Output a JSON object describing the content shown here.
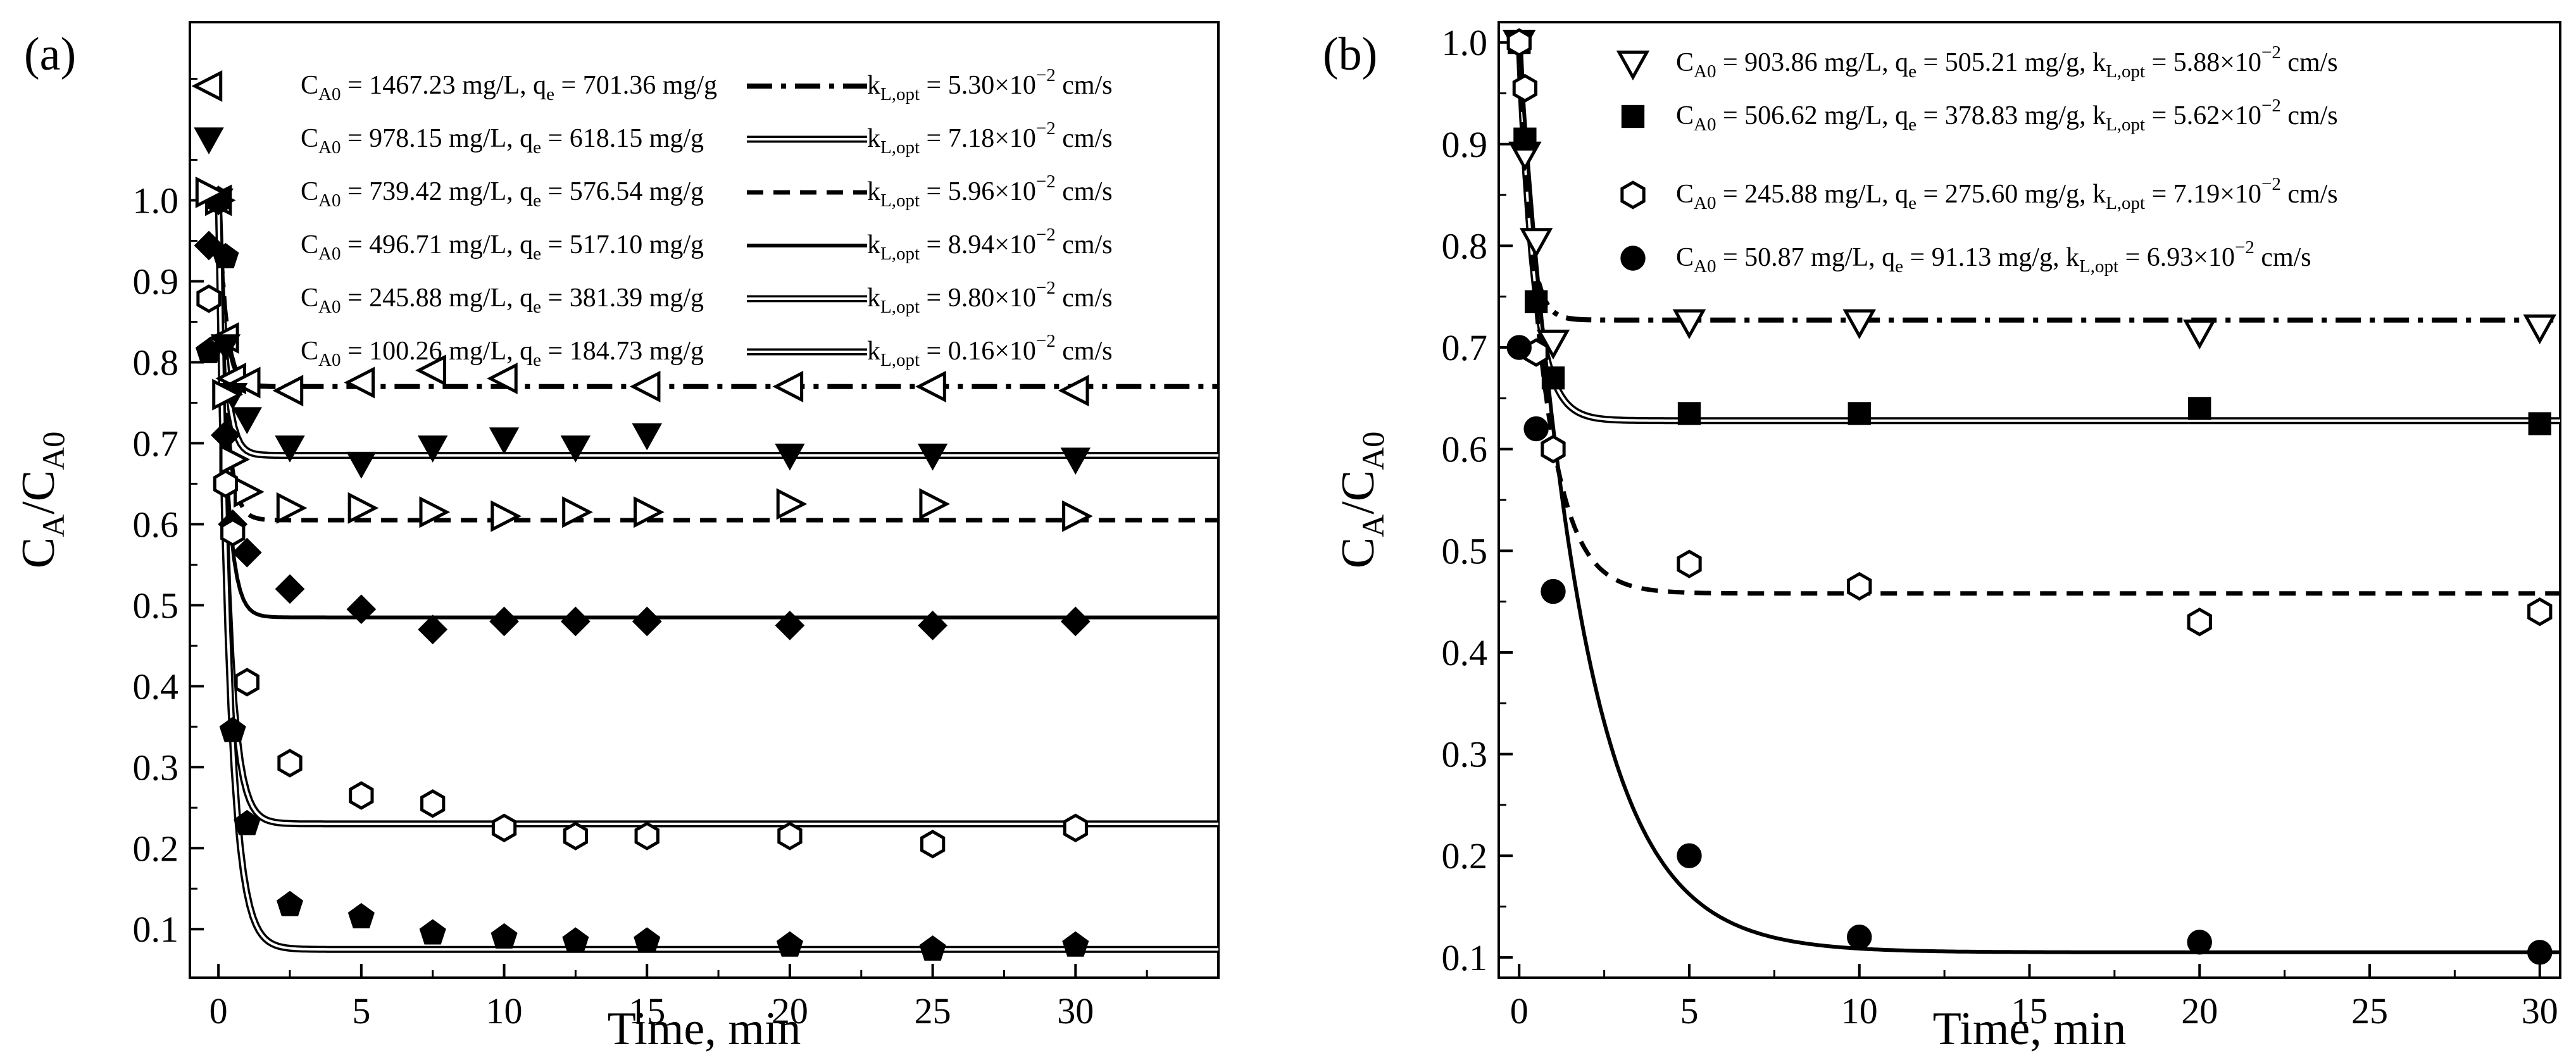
{
  "chart_data": [
    {
      "panel_label": "(a)",
      "type": "scatter",
      "xlabel": "Time, min",
      "ylabel_main": "C",
      "ylabel_sub": "A",
      "ylabel_sep": "/C",
      "ylabel_sub2": "A0",
      "xlim": [
        -1,
        35
      ],
      "ylim": [
        0.04,
        1.22
      ],
      "xticks": [
        0,
        5,
        10,
        15,
        20,
        25,
        30
      ],
      "yticks": [
        0.1,
        0.2,
        0.3,
        0.4,
        0.5,
        0.6,
        0.7,
        0.8,
        0.9,
        1.0
      ],
      "ytick_labels": [
        "0.1",
        "0.2",
        "0.3",
        "0.4",
        "0.5",
        "0.6",
        "0.7",
        "0.8",
        "0.9",
        "1.0"
      ],
      "xtick_labels": [
        "0",
        "5",
        "10",
        "15",
        "20",
        "25",
        "30"
      ],
      "series": [
        {
          "marker": "tri-left-open",
          "line_style": "dashdot",
          "legend": {
            "c0": "1467.23 mg/L",
            "qe": "701.36 mg/g",
            "sep": ", ",
            "kl": "5.30",
            "exp": "−2"
          },
          "x": [
            0,
            0.25,
            0.5,
            1,
            2.5,
            5,
            7.5,
            10,
            15,
            20,
            25,
            30
          ],
          "y": [
            1.0,
            0.83,
            0.78,
            0.775,
            0.765,
            0.775,
            0.79,
            0.78,
            0.77,
            0.77,
            0.77,
            0.765
          ],
          "model": {
            "plateau": 0.77,
            "k": 4.0
          }
        },
        {
          "marker": "tri-down-filled",
          "line_style": "double",
          "legend": {
            "c0": "978.15 mg/L",
            "qe": "618.15 mg/g",
            "sep": ",  ",
            "kl": "7.18",
            "exp": "−2"
          },
          "x": [
            0,
            0.25,
            0.5,
            1,
            2.5,
            5,
            7.5,
            10,
            12.5,
            15,
            20,
            25,
            30
          ],
          "y": [
            1.0,
            0.82,
            0.76,
            0.73,
            0.695,
            0.675,
            0.695,
            0.705,
            0.695,
            0.71,
            0.685,
            0.685,
            0.68
          ],
          "model": {
            "plateau": 0.685,
            "k": 4.0
          }
        },
        {
          "marker": "tri-right-open",
          "line_style": "dashed",
          "legend": {
            "c0": "739.42 mg/L",
            "qe": "576.54 mg/g",
            "sep": ", ",
            "kl": "5.96",
            "exp": "−2"
          },
          "x": [
            0,
            0.25,
            0.5,
            1,
            2.5,
            5,
            7.5,
            10,
            12.5,
            15,
            20,
            25,
            30
          ],
          "y": [
            1.0,
            0.76,
            0.68,
            0.64,
            0.62,
            0.62,
            0.615,
            0.61,
            0.615,
            0.615,
            0.625,
            0.625,
            0.61
          ],
          "model": {
            "plateau": 0.605,
            "k": 3.8
          }
        },
        {
          "marker": "diamond-filled",
          "line_style": "solid",
          "legend": {
            "c0": "496.71 mg/L",
            "qe": "517.10 mg/g",
            "sep": ",  ",
            "kl": "8.94",
            "exp": "−2"
          },
          "x": [
            0,
            0.25,
            0.5,
            1,
            2.5,
            5,
            7.5,
            10,
            12.5,
            15,
            20,
            25,
            30
          ],
          "y": [
            1.0,
            0.71,
            0.6,
            0.565,
            0.52,
            0.495,
            0.47,
            0.48,
            0.48,
            0.48,
            0.475,
            0.475,
            0.48
          ],
          "model": {
            "plateau": 0.485,
            "k": 3.6
          }
        },
        {
          "marker": "hexagon-open",
          "line_style": "double",
          "legend": {
            "c0": "245.88 mg/L",
            "qe": "381.39 mg/g",
            "sep": ",  ",
            "kl": "9.80",
            "exp": "−2"
          },
          "x": [
            0,
            0.25,
            0.5,
            1,
            2.5,
            5,
            7.5,
            10,
            12.5,
            15,
            20,
            25,
            30
          ],
          "y": [
            1.0,
            0.65,
            0.59,
            0.405,
            0.305,
            0.265,
            0.255,
            0.225,
            0.215,
            0.215,
            0.215,
            0.205,
            0.225
          ],
          "model": {
            "plateau": 0.23,
            "k": 3.0
          }
        },
        {
          "marker": "pentagon-filled",
          "line_style": "double",
          "legend": {
            "c0": "100.26 mg/L",
            "qe": "184.73 mg/g",
            "sep": ",  ",
            "kl": "0.16",
            "exp": "−2"
          },
          "x": [
            0,
            0.25,
            0.5,
            1,
            2.5,
            5,
            7.5,
            10,
            12.5,
            15,
            20,
            25,
            30
          ],
          "y": [
            1.0,
            0.93,
            0.345,
            0.23,
            0.13,
            0.115,
            0.095,
            0.09,
            0.085,
            0.085,
            0.08,
            0.075,
            0.08
          ],
          "model": {
            "plateau": 0.075,
            "k": 2.6
          }
        }
      ]
    },
    {
      "panel_label": "(b)",
      "type": "scatter",
      "xlabel": "Time, min",
      "ylabel_main": "C",
      "ylabel_sub": "A",
      "ylabel_sep": "/C",
      "ylabel_sub2": "A0",
      "xlim": [
        -0.6,
        30.6
      ],
      "ylim": [
        0.08,
        1.02
      ],
      "xticks": [
        0,
        5,
        10,
        15,
        20,
        25,
        30
      ],
      "yticks": [
        0.1,
        0.2,
        0.3,
        0.4,
        0.5,
        0.6,
        0.7,
        0.8,
        0.9,
        1.0
      ],
      "ytick_labels": [
        "0.1",
        "0.2",
        "0.3",
        "0.4",
        "0.5",
        "0.6",
        "0.7",
        "0.8",
        "0.9",
        "1.0"
      ],
      "xtick_labels": [
        "0",
        "5",
        "10",
        "15",
        "20",
        "25",
        "30"
      ],
      "series": [
        {
          "marker": "tri-down-open",
          "line_style": "dashdot",
          "legend": {
            "c0": "903.86 mg/L",
            "qe": "505.21 mg/g",
            "sep": ", ",
            "kl": "5.88",
            "exp": "−2"
          },
          "x": [
            0,
            0.17,
            0.5,
            1,
            5,
            10,
            20,
            30
          ],
          "y": [
            1.0,
            0.89,
            0.805,
            0.705,
            0.725,
            0.725,
            0.715,
            0.72
          ],
          "model": {
            "plateau": 0.727,
            "k": 3.5
          }
        },
        {
          "marker": "square-filled",
          "line_style": "double",
          "legend": {
            "c0": "506.62 mg/L",
            "qe": "378.83 mg/g",
            "sep": ", ",
            "kl": "5.62",
            "exp": "−2"
          },
          "x": [
            0,
            0.17,
            0.5,
            1,
            5,
            10,
            20,
            30
          ],
          "y": [
            1.0,
            0.905,
            0.745,
            0.67,
            0.635,
            0.635,
            0.64,
            0.625
          ],
          "model": {
            "plateau": 0.628,
            "k": 2.2
          }
        },
        {
          "marker": "hexagon-open",
          "line_style": "dashed",
          "legend": {
            "c0": "245.88 mg/L",
            "qe": "275.60 mg/g",
            "sep": ", ",
            "kl": "7.19",
            "exp": "−2"
          },
          "x": [
            0,
            0.17,
            0.5,
            1,
            5,
            10,
            20,
            30
          ],
          "y": [
            1.0,
            0.955,
            0.695,
            0.6,
            0.487,
            0.465,
            0.43,
            0.44
          ],
          "model": {
            "plateau": 0.458,
            "k": 1.3
          }
        },
        {
          "marker": "circle-filled",
          "line_style": "solid",
          "legend": {
            "c0": "50.87 mg/L",
            "qe": "91.13 mg/g",
            "sep": ", ",
            "kl": "6.93",
            "exp": "−2"
          },
          "x": [
            0,
            0.5,
            1,
            5,
            10,
            20,
            30
          ],
          "y": [
            0.7,
            0.62,
            0.46,
            0.2,
            0.12,
            0.115,
            0.105
          ],
          "model": {
            "plateau": 0.105,
            "k": 0.55
          }
        }
      ]
    }
  ],
  "legend_text": {
    "c_label": "C",
    "c_sub": "A0",
    "eq": " = ",
    "q_label": "q",
    "q_sub": "e",
    "k_label": "k",
    "k_sub": "L,opt",
    "times": "×10",
    "unit": " cm/s"
  }
}
